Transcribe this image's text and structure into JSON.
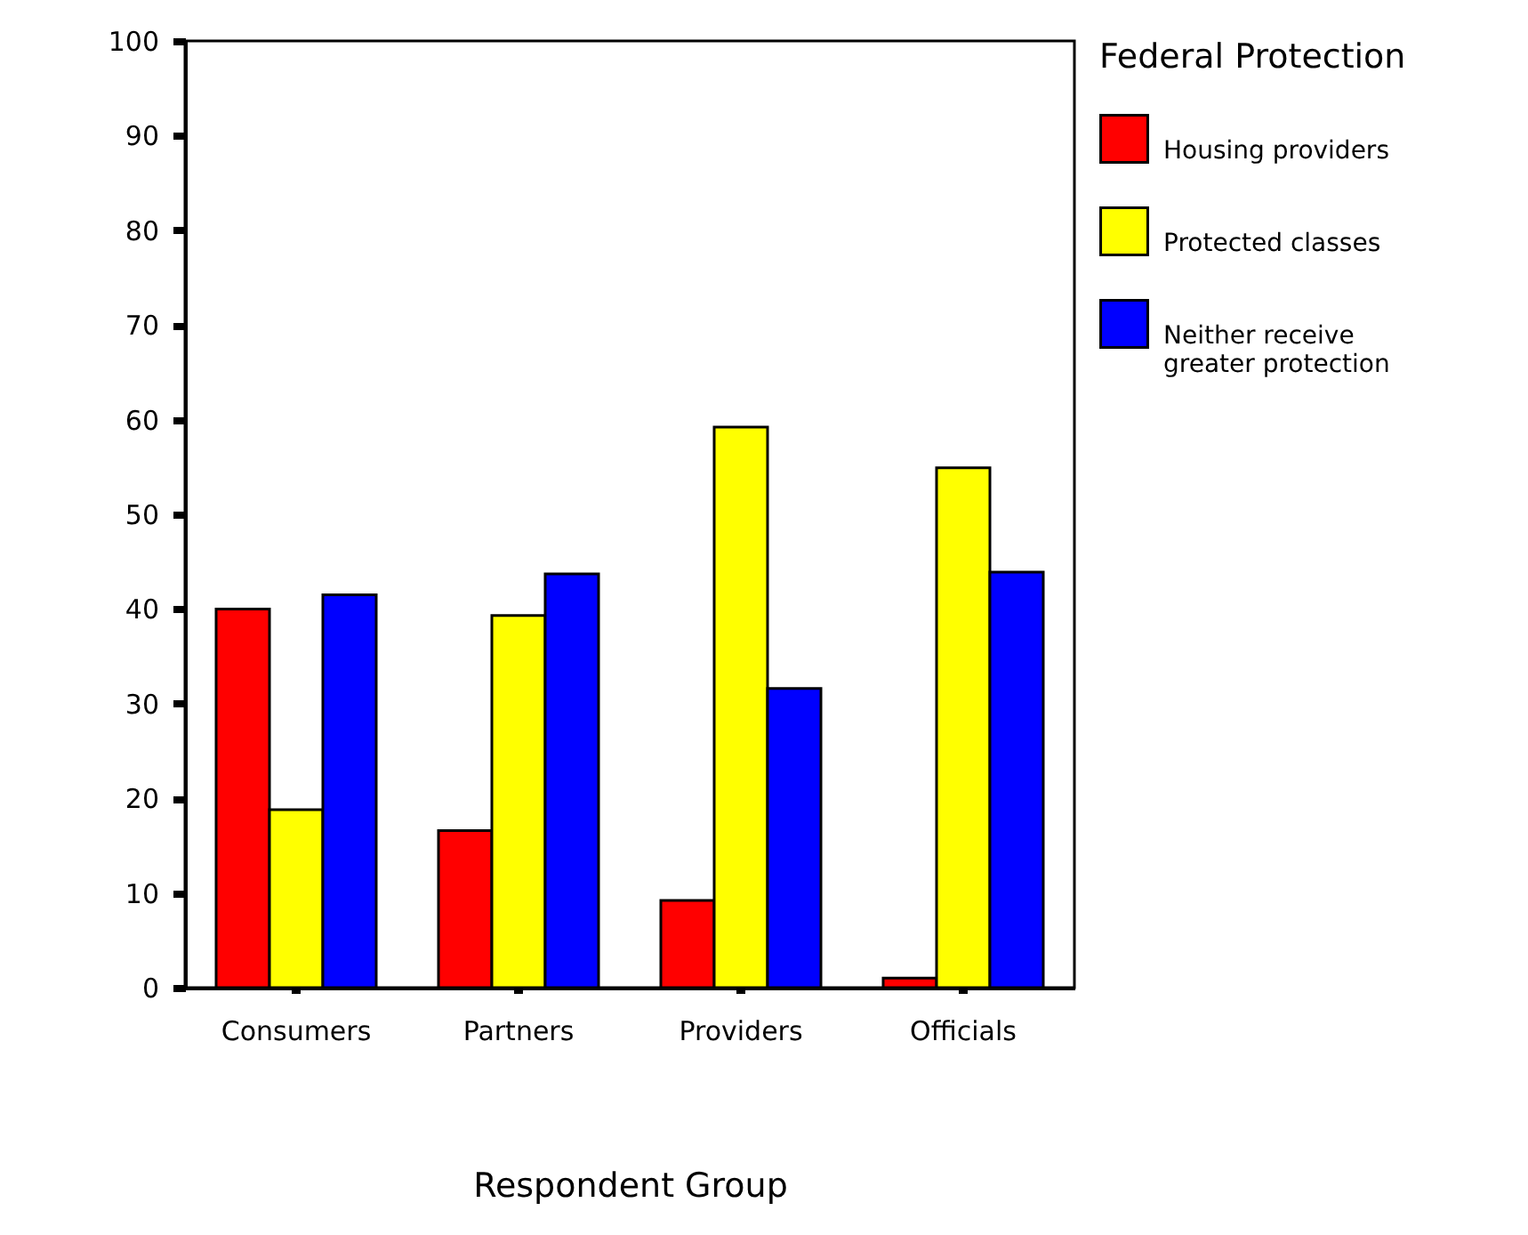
{
  "chart_data": {
    "type": "bar",
    "xlabel": "Respondent Group",
    "legend_title": "Federal Protection",
    "categories": [
      "Consumers",
      "Partners",
      "Providers",
      "Officials"
    ],
    "series": [
      {
        "name": "Housing providers",
        "color": "#ff0000",
        "values": [
          40,
          16.6,
          9.2,
          1.0
        ]
      },
      {
        "name": "Protected classes",
        "color": "#ffff00",
        "values": [
          18.8,
          39.3,
          59.2,
          54.9
        ]
      },
      {
        "name": "Neither receive greater protection",
        "color": "#0000ff",
        "values": [
          41.5,
          43.7,
          31.6,
          43.9
        ]
      }
    ],
    "ylim": [
      0,
      100
    ],
    "yticks": [
      0,
      10,
      20,
      30,
      40,
      50,
      60,
      70,
      80,
      90,
      100
    ],
    "grid": false,
    "legend": "right"
  }
}
